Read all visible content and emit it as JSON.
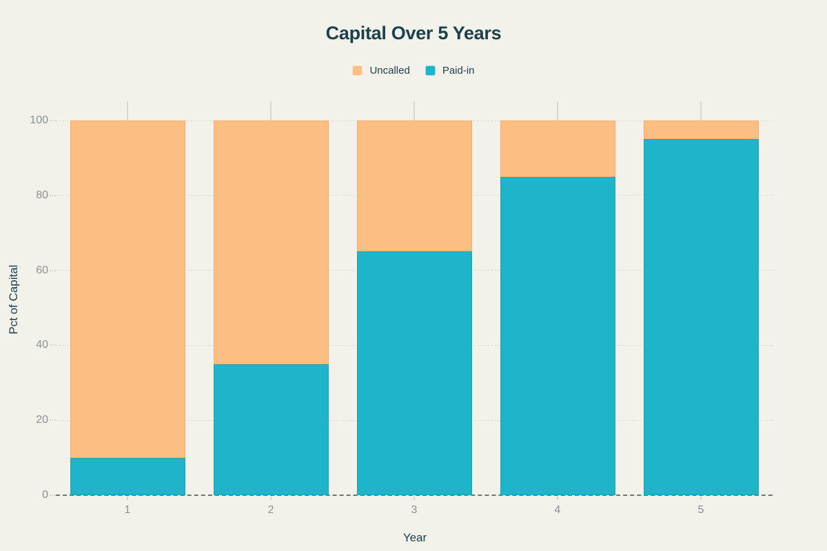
{
  "title": "Capital Over 5 Years",
  "legend": {
    "position": "top",
    "items": [
      {
        "label": "Uncalled",
        "color": "#FCBE81"
      },
      {
        "label": "Paid-in",
        "color": "#1FB4C9"
      }
    ]
  },
  "chart_data": {
    "type": "bar",
    "stacked": true,
    "title": "Capital Over 5 Years",
    "xlabel": "Year",
    "ylabel": "Pct of Capital",
    "categories": [
      "1",
      "2",
      "3",
      "4",
      "5"
    ],
    "series": [
      {
        "name": "Paid-in",
        "color": "#1FB4C9",
        "border_color": "#15A6BB",
        "values": [
          10,
          35,
          65,
          85,
          95
        ]
      },
      {
        "name": "Uncalled",
        "color": "#FCBE81",
        "border_color": "#F2AC67",
        "values": [
          90,
          65,
          35,
          15,
          5
        ]
      }
    ],
    "ylim": [
      0,
      100
    ],
    "yticks": [
      0,
      20,
      40,
      60,
      80,
      100
    ],
    "grid": true,
    "legend_position": "top",
    "background_color": "#F2F1EA",
    "tick_label_color": "#8A9195",
    "axis_title_color": "#1C414D"
  }
}
